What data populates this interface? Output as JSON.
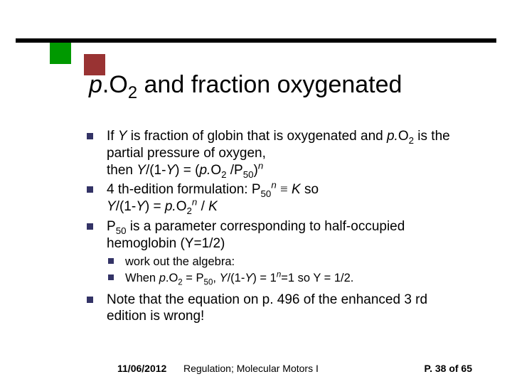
{
  "decor": {
    "bar_color": "#000000",
    "square_green": "#009900",
    "square_maroon": "#993333",
    "bullet_color": "#333366"
  },
  "title_html": "<span class='ital'>p</span>.O<span class='sub'>2</span> and fraction oxygenated",
  "bullets": [
    {
      "html": "If <span class='ital'>Y</span> is fraction of globin that is oxygenated and <span class='ital'>p.</span>O<span class='sub'>2</span> is the partial pressure of oxygen,<br>then <span class='ital'>Y</span>/(1-<span class='ital'>Y</span>) = (<span class='ital'>p.</span>O<span class='sub'>2</span> /P<span class='sub'>50</span>)<span class='sup'>n</span>"
    },
    {
      "html": "4 th-edition formulation: P<span class='sub'>50</span><span class='sup'>n</span> <span class='equiv'>≡</span> <span class='ital'>K</span> so<br><span class='ital'>Y</span>/(1-<span class='ital'>Y</span>) = <span class='ital'>p.</span>O<span class='sub'>2</span><span class='sup'>n</span> / <span class='ital'>K</span>"
    },
    {
      "html": "P<span class='sub'>50</span> is a parameter corresponding to half-occupied hemoglobin (Y=1/2)"
    }
  ],
  "sub_bullets": [
    {
      "html": "work out the algebra:"
    },
    {
      "html": "When <span class='ital'>p</span>.O<span class='sub'>2</span> = P<span class='sub'>50</span>, <span class='ital'>Y</span>/(1-<span class='ital'>Y</span>) = 1<span class='sup'>n</span>=1 so Y = 1/2."
    }
  ],
  "last_bullet": {
    "html": "Note that the equation on p. 496 of the enhanced 3 rd edition is wrong!"
  },
  "footer": {
    "date": "11/06/2012",
    "subject": "Regulation; Molecular Motors I",
    "page": "P. 38 of 65"
  }
}
